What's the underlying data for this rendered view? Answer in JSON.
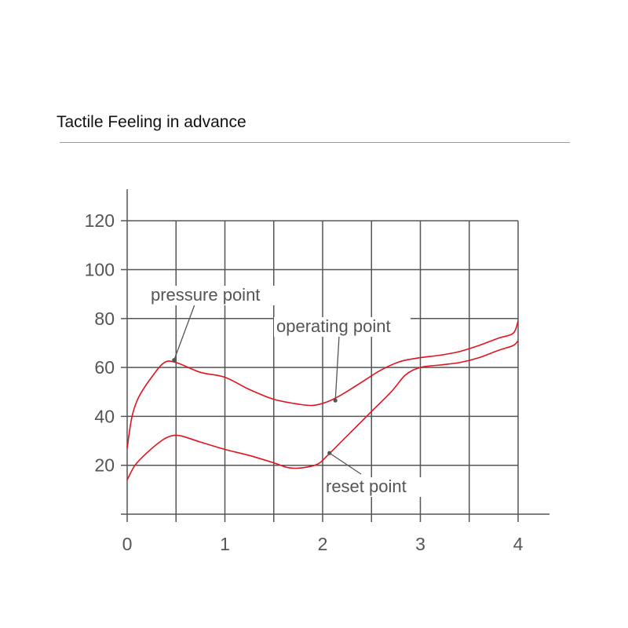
{
  "title": "Tactile Feeling in advance",
  "colors": {
    "curve": "#e0141e",
    "grid": "#555555",
    "text": "#555555"
  },
  "chart_data": {
    "type": "line",
    "title": "Tactile Feeling in advance",
    "xlabel": "",
    "ylabel": "",
    "xlim": [
      0,
      4.3
    ],
    "ylim": [
      0,
      132
    ],
    "x_ticks": [
      0,
      1,
      2,
      3,
      4
    ],
    "y_ticks": [
      20,
      40,
      60,
      80,
      100,
      120
    ],
    "grid": true,
    "series": [
      {
        "points": [
          [
            0,
            27
          ],
          [
            0.05,
            40
          ],
          [
            0.12,
            48
          ],
          [
            0.25,
            56
          ],
          [
            0.38,
            62
          ],
          [
            0.5,
            62
          ],
          [
            0.75,
            58
          ],
          [
            1.0,
            56
          ],
          [
            1.25,
            51
          ],
          [
            1.5,
            47
          ],
          [
            1.75,
            45
          ],
          [
            1.9,
            44.5
          ],
          [
            2.05,
            46
          ],
          [
            2.2,
            49
          ],
          [
            2.4,
            54
          ],
          [
            2.6,
            59
          ],
          [
            2.8,
            62.5
          ],
          [
            3.0,
            64
          ],
          [
            3.2,
            65
          ],
          [
            3.4,
            66.5
          ],
          [
            3.6,
            69
          ],
          [
            3.8,
            72
          ],
          [
            3.95,
            74
          ],
          [
            4.0,
            79
          ]
        ]
      },
      {
        "points": [
          [
            0,
            14
          ],
          [
            0.08,
            20
          ],
          [
            0.2,
            25
          ],
          [
            0.35,
            30
          ],
          [
            0.45,
            32
          ],
          [
            0.55,
            32
          ],
          [
            0.75,
            29.5
          ],
          [
            1.0,
            26.5
          ],
          [
            1.25,
            24
          ],
          [
            1.5,
            21
          ],
          [
            1.65,
            19
          ],
          [
            1.8,
            19
          ],
          [
            1.95,
            20.5
          ],
          [
            2.05,
            24
          ],
          [
            2.2,
            30
          ],
          [
            2.45,
            40
          ],
          [
            2.7,
            50
          ],
          [
            2.85,
            57
          ],
          [
            3.0,
            60
          ],
          [
            3.2,
            61
          ],
          [
            3.4,
            62
          ],
          [
            3.6,
            64
          ],
          [
            3.8,
            67
          ],
          [
            3.95,
            69
          ],
          [
            4.0,
            71
          ]
        ]
      }
    ],
    "annotations": [
      {
        "text": "pressure point",
        "x": 0.48,
        "y": 63
      },
      {
        "text": "operating point",
        "x": 2.13,
        "y": 46.5
      },
      {
        "text": "reset point",
        "x": 2.07,
        "y": 25
      }
    ]
  }
}
